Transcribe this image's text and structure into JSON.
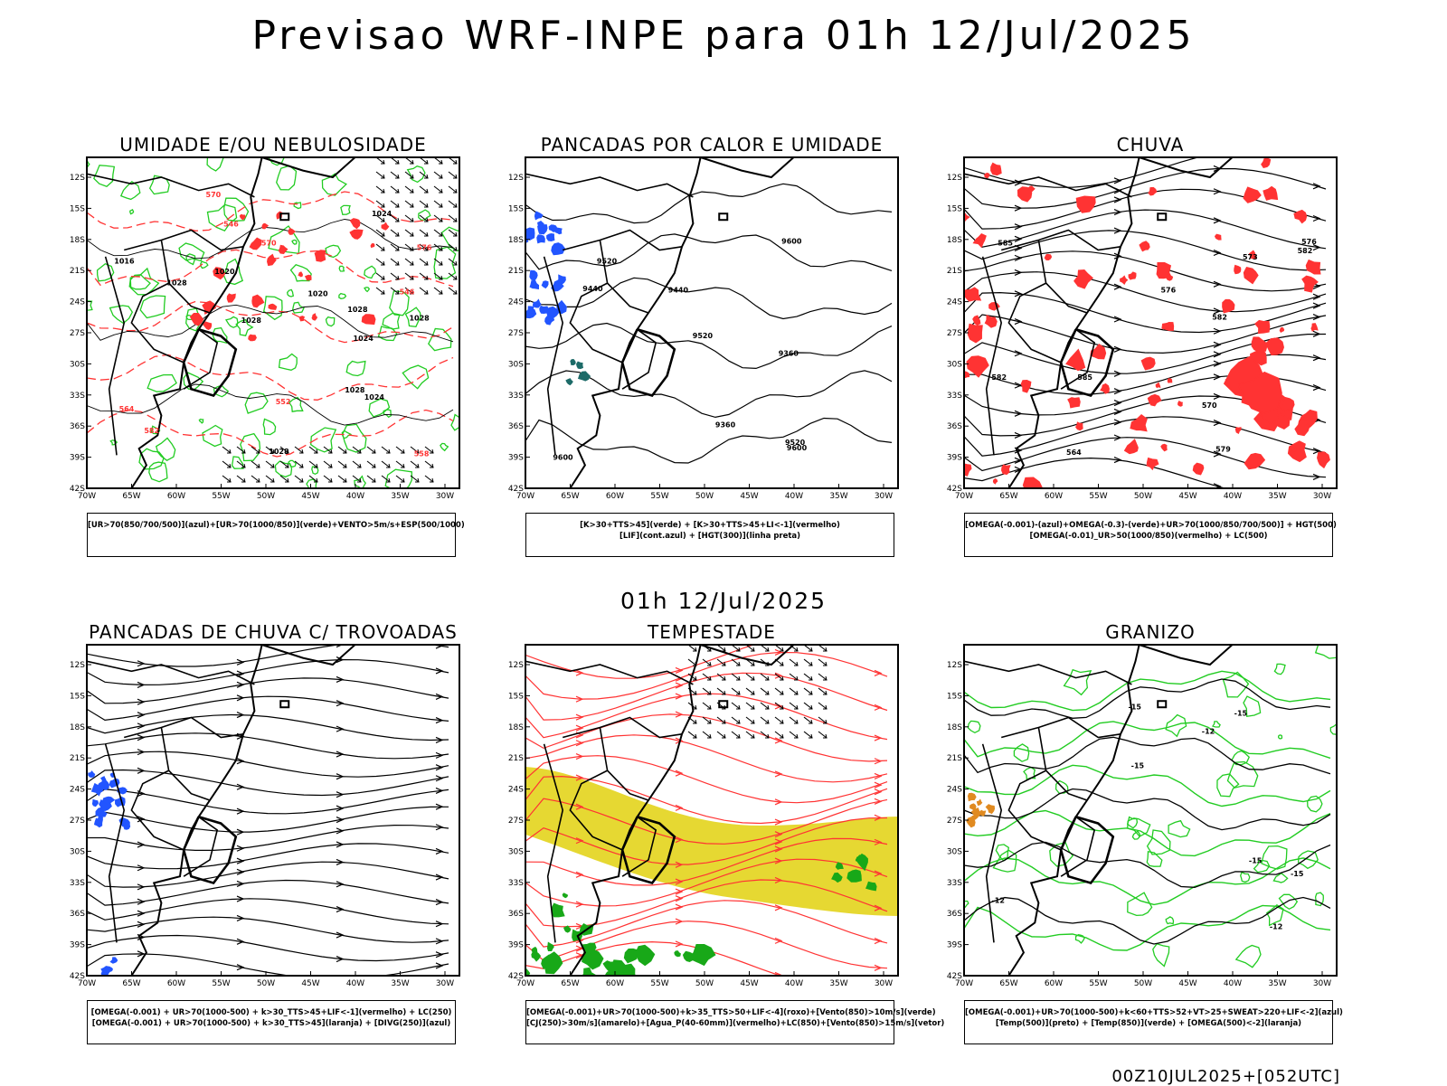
{
  "title": "Previsao WRF-INPE  para 01h 12/Jul/2025",
  "mid_time": "01h 12/Jul/2025",
  "footer": "00Z10JUL2025+[052UTC]",
  "axes": {
    "lat_labels": [
      "12S",
      "15S",
      "18S",
      "21S",
      "24S",
      "27S",
      "30S",
      "33S",
      "36S",
      "39S",
      "42S"
    ],
    "lon_labels": [
      "70W",
      "65W",
      "60W",
      "55W",
      "50W",
      "45W",
      "40W",
      "35W",
      "30W"
    ]
  },
  "colors": {
    "green": "#22cc22",
    "red": "#ff3333",
    "blue": "#2255ff",
    "yellow": "#e6d832",
    "teal": "#1d6b68",
    "black": "#000000"
  },
  "panels": [
    {
      "title": "UMIDADE E/OU NEBULOSIDADE",
      "legend": [
        "[UR>70(850/700/500)](azul)+[UR>70(1000/850)](verde)+VENTO>5m/s+ESP(500/1000)"
      ],
      "labels": [
        "1016",
        "1020",
        "1024",
        "1024",
        "1020",
        "1028",
        "1028",
        "1028",
        "1024",
        "1028",
        "1028",
        "1028",
        "570",
        "570",
        "564",
        "558",
        "552",
        "546",
        "546",
        "582",
        "576"
      ]
    },
    {
      "title": "PANCADAS POR CALOR E UMIDADE",
      "legend": [
        "[K>30+TTS>45](verde) + [K>30+TTS>45+LI<-1](vermelho)",
        "[LIF](cont.azul) + [HGT(300)](linha preta)"
      ],
      "labels": [
        "9600",
        "9520",
        "9600",
        "9440",
        "9520",
        "9600",
        "9520",
        "9440",
        "9360",
        "9360"
      ]
    },
    {
      "title": "CHUVA",
      "legend": [
        "[OMEGA(-0.001)-(azul)+OMEGA(-0.3)-(verde)+UR>70(1000/850/700/500)] + HGT(500)",
        "[OMEGA(-0.01)_UR>50(1000/850)(vermelho) + LC(500)"
      ],
      "labels": [
        "582",
        "582",
        "570",
        "576",
        "585",
        "579",
        "576",
        "573",
        "564",
        "582",
        "585"
      ]
    },
    {
      "title": "PANCADAS DE CHUVA C/ TROVOADAS",
      "legend": [
        "[OMEGA(-0.001) + UR>70(1000-500) + k>30_TTS>45+LIF<-1](vermelho) + LC(250)",
        "[OMEGA(-0.001) + UR>70(1000-500) + k>30_TTS>45](laranja) + [DIVG(250)](azul)"
      ],
      "labels": []
    },
    {
      "title": "TEMPESTADE",
      "legend": [
        "[OMEGA(-0.001)+UR>70(1000-500)+k>35_TTS>50+LIF<-4](roxo)+[Vento(850)>10m/s](verde)",
        "[CJ(250)>30m/s](amarelo)+[Agua_P(40-60mm)](vermelho)+LC(850)+[Vento(850)>15m/s](vetor)"
      ],
      "labels": []
    },
    {
      "title": "GRANIZO",
      "legend": [
        "[OMEGA(-0.001)+UR>70(1000-500)+k<60+TTS>52+VT>25+SWEAT>220+LIF<-2](azul)",
        "[Temp(500)](preto) + [Temp(850)](verde) + [OMEGA(500)<-2](laranja)"
      ],
      "labels": [
        "-12",
        "-15",
        "-15",
        "-15",
        "-15",
        "-12",
        "-15",
        "-12"
      ]
    }
  ]
}
